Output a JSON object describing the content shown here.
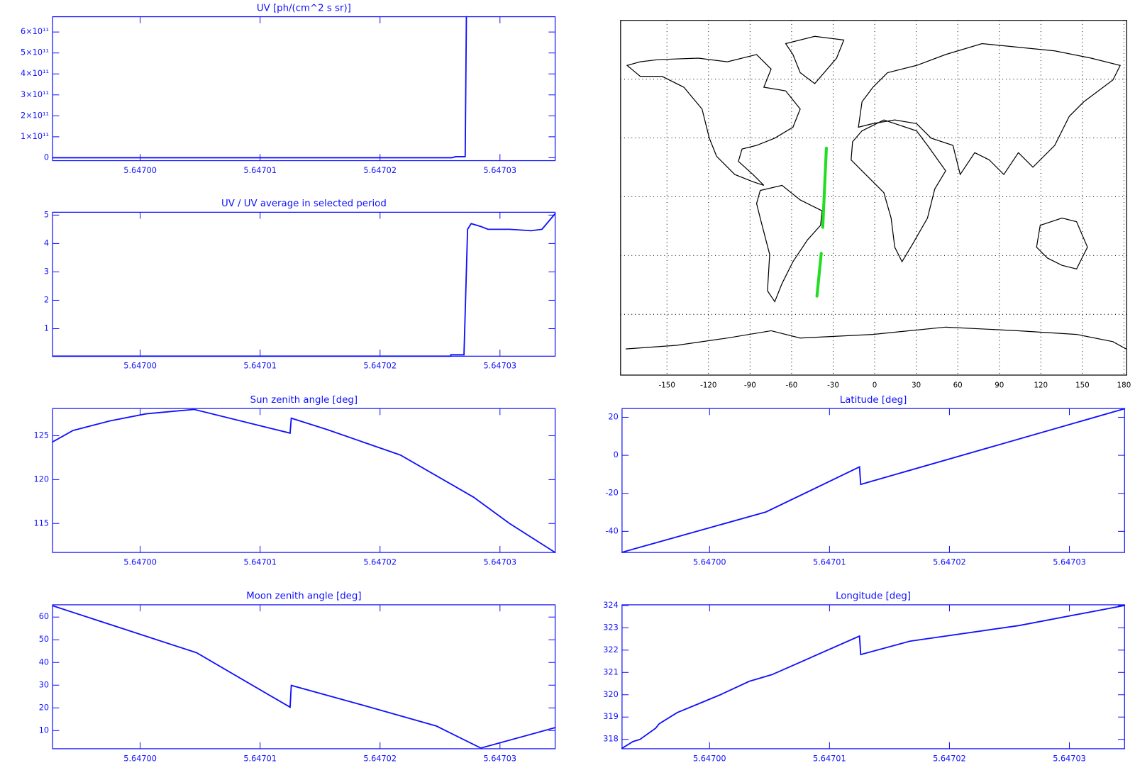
{
  "chart_data": [
    {
      "type": "line",
      "title": "UV [ph/(cm^2 s sr)]",
      "x": [
        5.6469927,
        5.647026,
        5.6470263,
        5.6470271,
        5.6470272
      ],
      "series": [
        {
          "color": "#1010ff",
          "values": [
            0,
            0,
            5000000000,
            5000000000,
            673000000000
          ]
        }
      ],
      "xlim": [
        5.6469927,
        5.6470346
      ],
      "ylim": [
        -14000000000,
        673000000000
      ],
      "xticks": [
        {
          "value": 5.647,
          "label": "5.64700"
        },
        {
          "value": 5.64701,
          "label": "5.64701"
        },
        {
          "value": 5.64702,
          "label": "5.64702"
        },
        {
          "value": 5.64703,
          "label": "5.64703"
        }
      ],
      "yticks": [
        0,
        {
          "value": 100000000000,
          "label": "1×10¹¹"
        },
        {
          "value": 200000000000,
          "label": "2×10¹¹"
        },
        {
          "value": 300000000000,
          "label": "3×10¹¹"
        },
        {
          "value": 400000000000,
          "label": "4×10¹¹"
        },
        {
          "value": 500000000000,
          "label": "5×10¹¹"
        },
        {
          "value": 600000000000,
          "label": "6×10¹¹"
        }
      ]
    },
    {
      "type": "line",
      "title": "UV / UV average in selected period",
      "x": [
        5.6469927,
        5.6470259,
        5.6470259,
        5.647027,
        5.6470273,
        5.6470276,
        5.6470284,
        5.647029,
        5.6470308,
        5.6470326,
        5.6470335,
        5.6470346
      ],
      "series": [
        {
          "color": "#1010ff",
          "values": [
            0.03,
            0.03,
            0.08,
            0.08,
            4.5,
            4.7,
            4.6,
            4.5,
            4.5,
            4.45,
            4.5,
            5.05
          ]
        }
      ],
      "xlim": [
        5.6469927,
        5.6470346
      ],
      "ylim": [
        0.03,
        5.1
      ],
      "xticks": [
        {
          "value": 5.647,
          "label": "5.64700"
        },
        {
          "value": 5.64701,
          "label": "5.64701"
        },
        {
          "value": 5.64702,
          "label": "5.64702"
        },
        {
          "value": 5.64703,
          "label": "5.64703"
        }
      ],
      "yticks": [
        1,
        2,
        3,
        4,
        5
      ]
    },
    {
      "type": "map",
      "grid": true,
      "x": [
        -34.9,
        -37.5,
        null,
        -38.6,
        -41.7
      ],
      "series": [
        {
          "color": "#22dd22",
          "values": [
            24.8,
            -15.6,
            null,
            -28.9,
            -50.7
          ]
        }
      ],
      "xlim": [
        -183.5,
        182
      ],
      "ylim": [
        -91,
        90
      ],
      "xticks": [
        -150,
        -120,
        -90,
        -60,
        -30,
        0,
        30,
        60,
        90,
        120,
        150,
        180
      ],
      "ygrid": [
        -60,
        -30,
        0,
        30,
        60
      ]
    },
    {
      "type": "line",
      "title": "Sun zenith angle [deg]",
      "x": [
        5.6469927,
        5.6469944,
        5.6469975,
        5.6470005,
        5.6470045,
        5.6470125,
        5.6470126,
        5.6470156,
        5.6470217,
        5.6470278,
        5.6470308,
        5.6470346
      ],
      "series": [
        {
          "color": "#1010ff",
          "values": [
            124.3,
            125.6,
            126.7,
            127.5,
            128.0,
            125.3,
            127.0,
            125.7,
            122.8,
            118.0,
            115.0,
            111.7
          ]
        }
      ],
      "xlim": [
        5.6469927,
        5.6470346
      ],
      "ylim": [
        111.7,
        128.1
      ],
      "xticks": [
        {
          "value": 5.647,
          "label": "5.64700"
        },
        {
          "value": 5.64701,
          "label": "5.64701"
        },
        {
          "value": 5.64702,
          "label": "5.64702"
        },
        {
          "value": 5.64703,
          "label": "5.64703"
        }
      ],
      "yticks": [
        115,
        120,
        125
      ]
    },
    {
      "type": "line",
      "title": "Latitude [deg]",
      "x": [
        5.6469927,
        5.6470047,
        5.6470125,
        5.6470126,
        5.6470346
      ],
      "series": [
        {
          "color": "#1010ff",
          "values": [
            -51,
            -29.8,
            -6.1,
            -15.3,
            24.5
          ]
        }
      ],
      "xlim": [
        5.6469927,
        5.6470346
      ],
      "ylim": [
        -51.1,
        24.6
      ],
      "xticks": [
        {
          "value": 5.647,
          "label": "5.64700"
        },
        {
          "value": 5.64701,
          "label": "5.64701"
        },
        {
          "value": 5.64702,
          "label": "5.64702"
        },
        {
          "value": 5.64703,
          "label": "5.64703"
        }
      ],
      "yticks": [
        -40,
        -20,
        0,
        20
      ]
    },
    {
      "type": "line",
      "title": "Moon zenith angle [deg]",
      "x": [
        5.6469927,
        5.6470047,
        5.6470125,
        5.6470126,
        5.6470187,
        5.6470247,
        5.6470284,
        5.6470346
      ],
      "series": [
        {
          "color": "#1010ff",
          "values": [
            65,
            44.3,
            20.3,
            29.9,
            21,
            12,
            2.3,
            11.3
          ]
        }
      ],
      "xlim": [
        5.6469927,
        5.6470346
      ],
      "ylim": [
        2,
        65.4
      ],
      "xticks": [
        {
          "value": 5.647,
          "label": "5.64700"
        },
        {
          "value": 5.64701,
          "label": "5.64701"
        },
        {
          "value": 5.64702,
          "label": "5.64702"
        },
        {
          "value": 5.64703,
          "label": "5.64703"
        }
      ],
      "yticks": [
        10,
        20,
        30,
        40,
        50,
        60
      ]
    },
    {
      "type": "line",
      "title": "Longitude [deg]",
      "x": [
        5.6469927,
        5.6469936,
        5.6469942,
        5.6469955,
        5.6469958,
        5.6469973,
        5.6469991,
        5.6470009,
        5.6470033,
        5.6470052,
        5.6470125,
        5.6470126,
        5.6470167,
        5.6470258,
        5.6470346
      ],
      "series": [
        {
          "color": "#1010ff",
          "values": [
            317.6,
            317.9,
            318.0,
            318.5,
            318.7,
            319.2,
            319.6,
            320.0,
            320.6,
            320.9,
            322.63,
            321.8,
            322.4,
            323.1,
            324.0
          ]
        }
      ],
      "xlim": [
        5.6469927,
        5.6470346
      ],
      "ylim": [
        317.58,
        324.03
      ],
      "xticks": [
        {
          "value": 5.647,
          "label": "5.64700"
        },
        {
          "value": 5.64701,
          "label": "5.64701"
        },
        {
          "value": 5.64702,
          "label": "5.64702"
        },
        {
          "value": 5.64703,
          "label": "5.64703"
        }
      ],
      "yticks": [
        318,
        319,
        320,
        321,
        322,
        323,
        324
      ]
    }
  ]
}
